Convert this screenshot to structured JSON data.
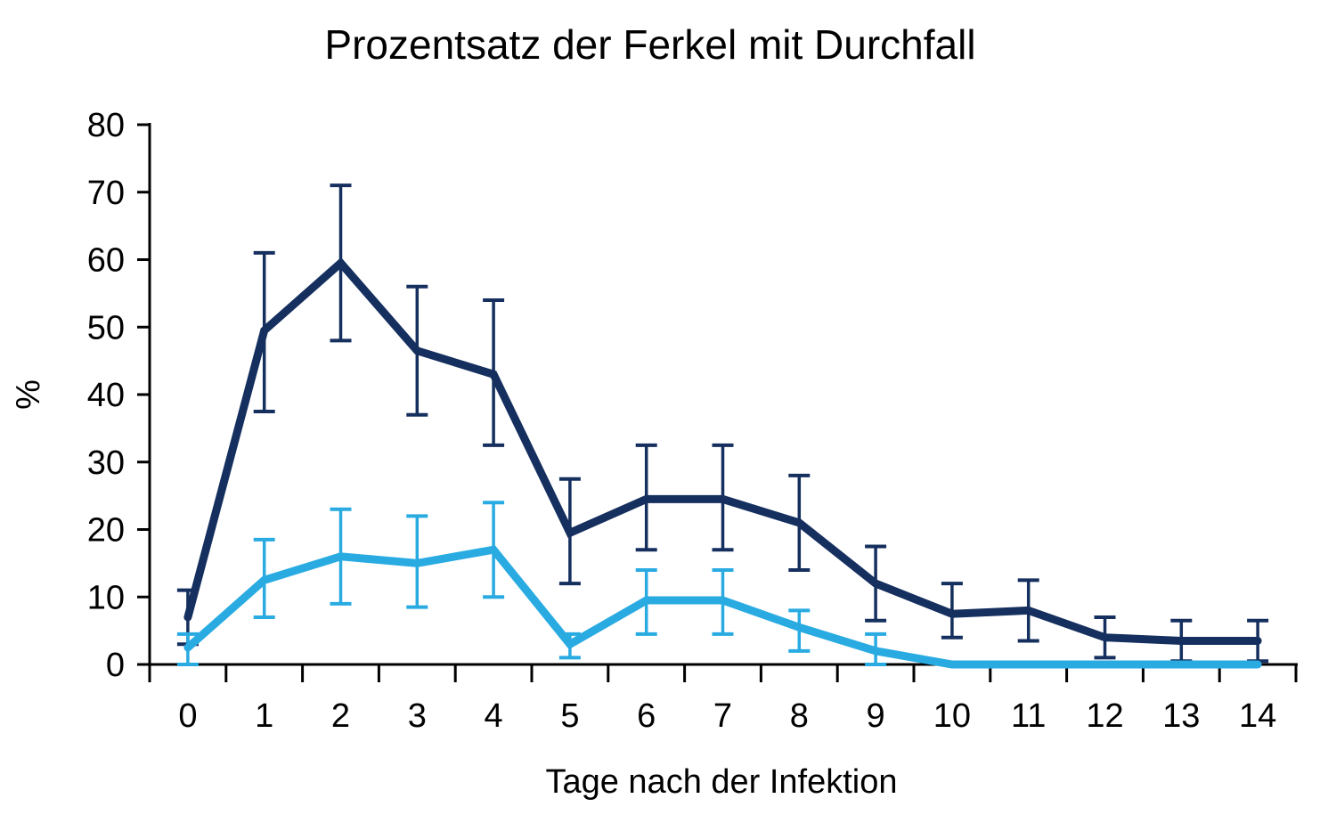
{
  "chart_data": {
    "type": "line",
    "title": "Prozentsatz der Ferkel mit Durchfall",
    "xlabel": "Tage nach der Infektion",
    "ylabel": "%",
    "x": [
      0,
      1,
      2,
      3,
      4,
      5,
      6,
      7,
      8,
      9,
      10,
      11,
      12,
      13,
      14
    ],
    "ylim": [
      0,
      80
    ],
    "yticks": [
      0,
      10,
      20,
      30,
      40,
      50,
      60,
      70,
      80
    ],
    "grid": false,
    "legend": "none",
    "tick_mode": "between-categories",
    "axis_color": "#000000",
    "text_color": "#000000",
    "series": [
      {
        "id": "navy",
        "color": "#152f5e",
        "values": [
          7,
          49.5,
          59.5,
          46.5,
          43,
          19.5,
          24.5,
          24.5,
          21,
          12,
          7.5,
          8,
          4,
          3.5,
          3.5
        ],
        "err_top": [
          11,
          61,
          71,
          56,
          54,
          27.5,
          32.5,
          32.5,
          28,
          17.5,
          12,
          12.5,
          7,
          6.5,
          6.5
        ],
        "err_bottom": [
          3,
          37.5,
          48,
          37,
          32.5,
          12,
          17,
          17,
          14,
          6.5,
          4,
          3.5,
          1,
          0.5,
          0.5
        ]
      },
      {
        "id": "light-blue",
        "color": "#29abe2",
        "values": [
          2.5,
          12.5,
          16,
          15,
          17,
          3,
          9.5,
          9.5,
          5.5,
          2,
          0,
          0,
          0,
          0,
          0
        ],
        "err_top": [
          4.5,
          18.5,
          23,
          22,
          24,
          4.5,
          14,
          14,
          8,
          4.5,
          null,
          null,
          null,
          null,
          null
        ],
        "err_bottom": [
          0,
          7,
          9,
          8.5,
          10,
          1,
          4.5,
          4.5,
          2,
          0,
          null,
          null,
          null,
          null,
          null
        ]
      }
    ]
  }
}
